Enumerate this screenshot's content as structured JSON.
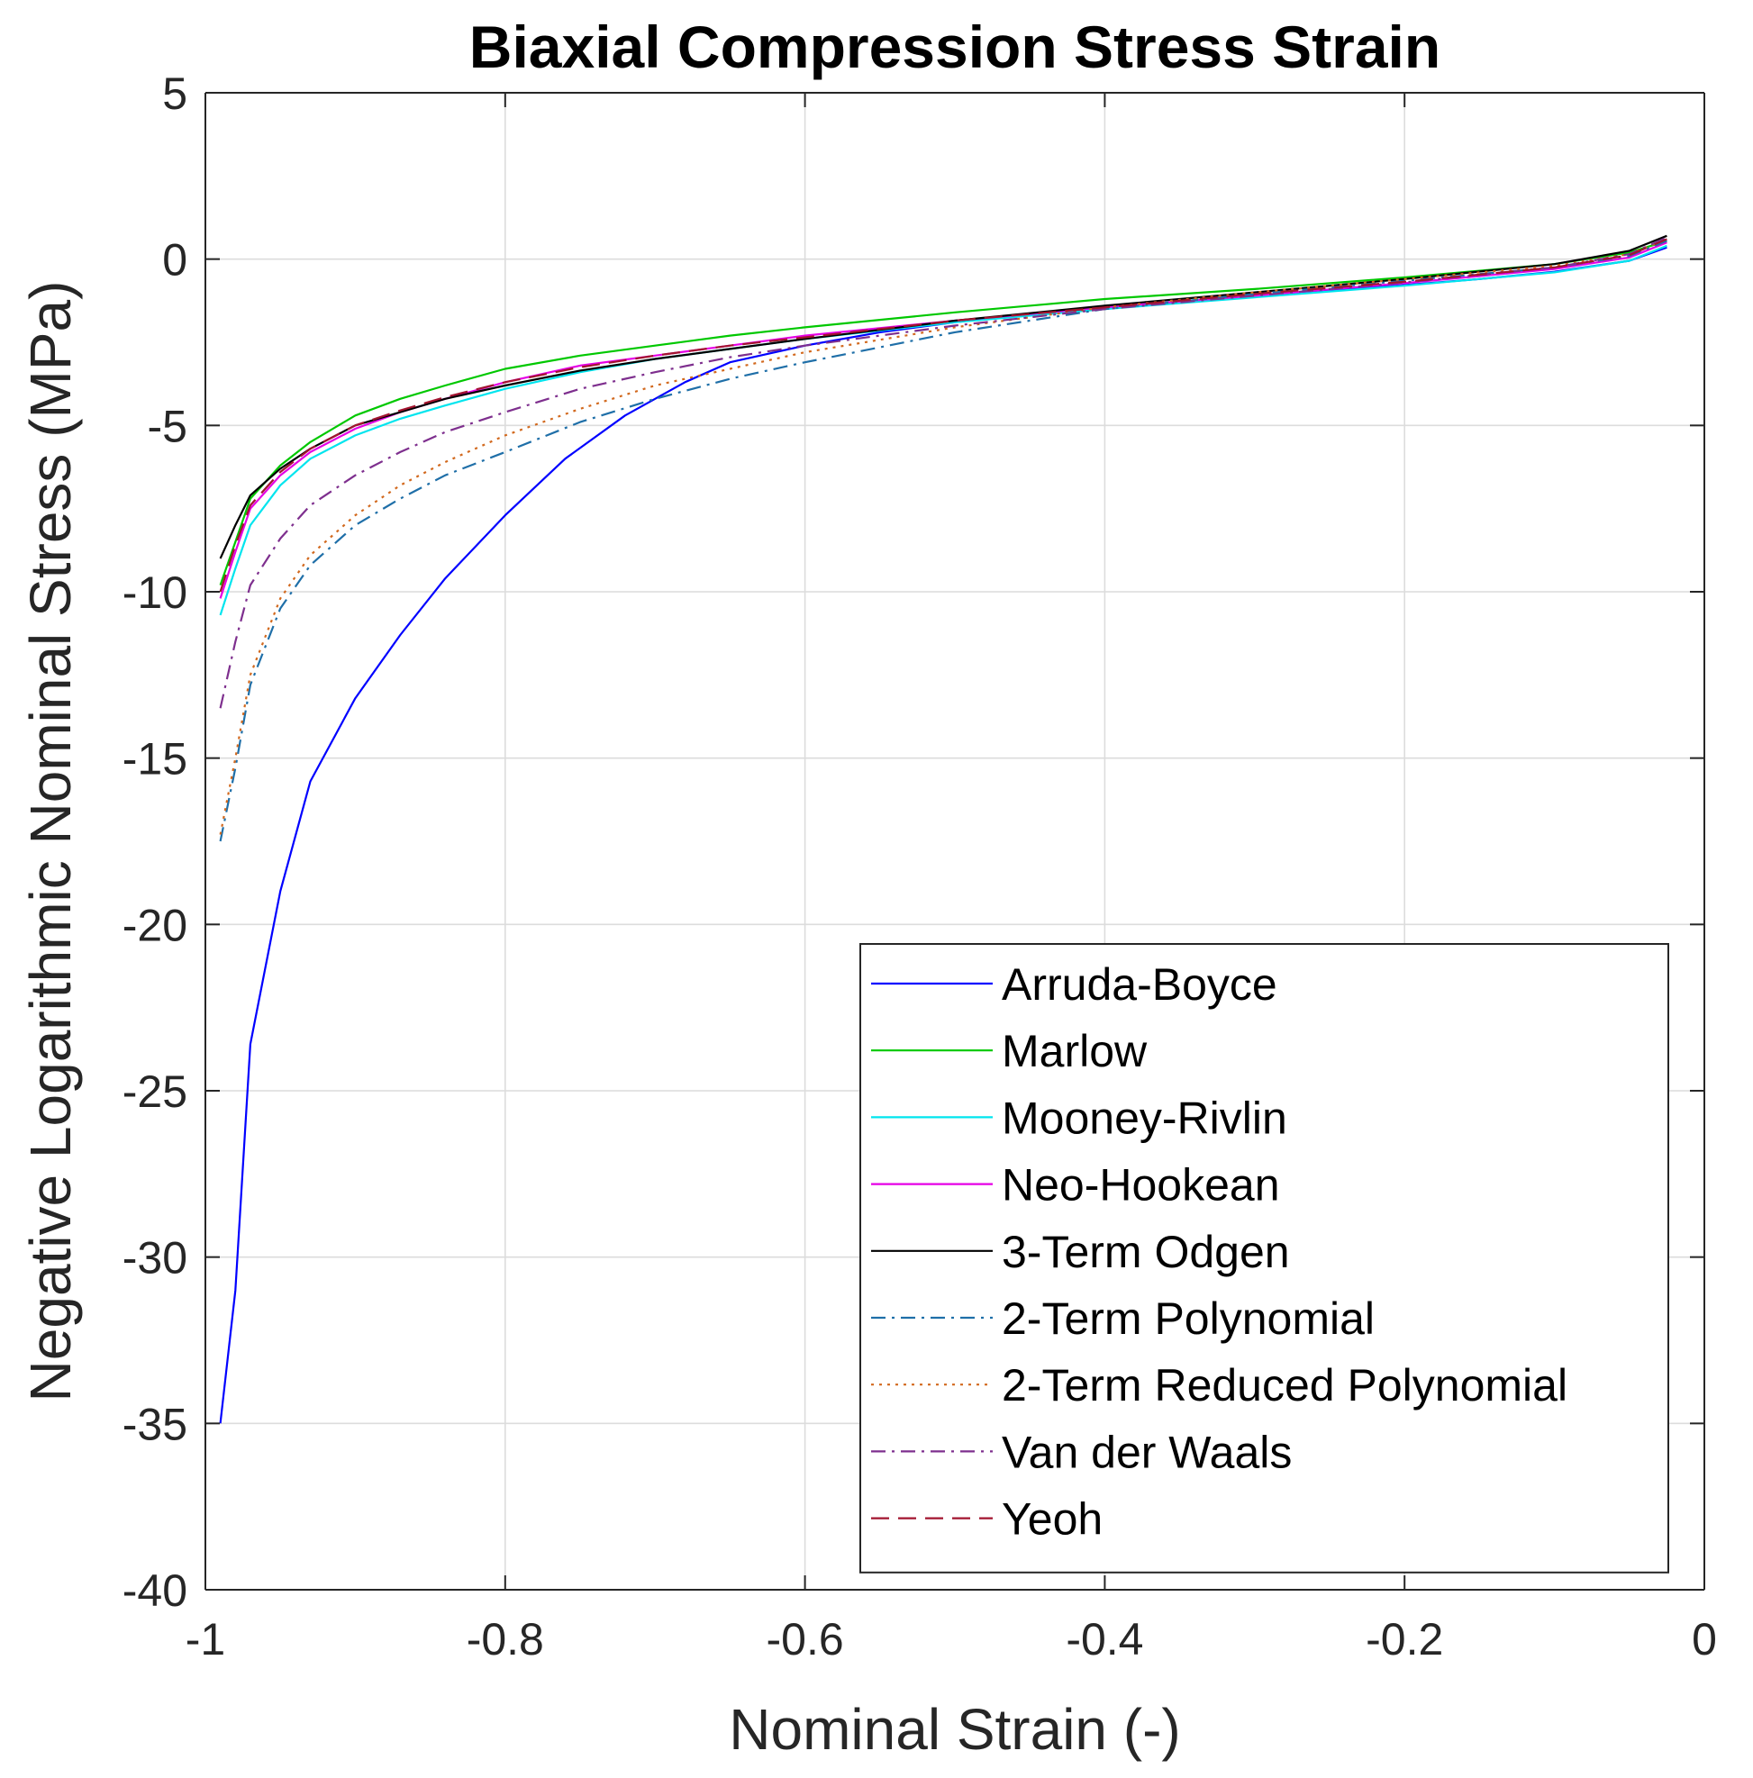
{
  "chart_data": {
    "type": "line",
    "title": "Biaxial Compression Stress Strain",
    "xlabel": "Nominal Strain (-)",
    "ylabel": "Negative Logarithmic Nominal Stress (MPa)",
    "xlim": [
      -1,
      0
    ],
    "ylim": [
      -40,
      5
    ],
    "xticks": [
      -1,
      -0.8,
      -0.6,
      -0.4,
      -0.2,
      0
    ],
    "xtick_labels": [
      "-1",
      "-0.8",
      "-0.6",
      "-0.4",
      "-0.2",
      "0"
    ],
    "yticks": [
      -40,
      -35,
      -30,
      -25,
      -20,
      -15,
      -10,
      -5,
      0,
      5
    ],
    "ytick_labels": [
      "-40",
      "-35",
      "-30",
      "-25",
      "-20",
      "-15",
      "-10",
      "-5",
      "0",
      "5"
    ],
    "grid": true,
    "legend_position": "lower-right",
    "series": [
      {
        "name": "Arruda-Boyce",
        "color": "#0000FF",
        "dash": "solid",
        "x": [
          -0.99,
          -0.98,
          -0.97,
          -0.95,
          -0.93,
          -0.9,
          -0.87,
          -0.84,
          -0.8,
          -0.76,
          -0.72,
          -0.68,
          -0.65,
          -0.6,
          -0.55,
          -0.5,
          -0.45,
          -0.4,
          -0.35,
          -0.3,
          -0.25,
          -0.2,
          -0.15,
          -0.1,
          -0.05,
          -0.025
        ],
        "y": [
          -35,
          -31,
          -23.6,
          -19,
          -15.7,
          -13.2,
          -11.3,
          -9.6,
          -7.7,
          -6.0,
          -4.7,
          -3.7,
          -3.1,
          -2.6,
          -2.2,
          -1.9,
          -1.65,
          -1.45,
          -1.28,
          -1.12,
          -0.95,
          -0.78,
          -0.6,
          -0.38,
          -0.05,
          0.35
        ]
      },
      {
        "name": "Marlow",
        "color": "#00C800",
        "dash": "solid",
        "x": [
          -0.99,
          -0.98,
          -0.97,
          -0.95,
          -0.93,
          -0.9,
          -0.87,
          -0.84,
          -0.8,
          -0.75,
          -0.7,
          -0.65,
          -0.6,
          -0.5,
          -0.4,
          -0.3,
          -0.2,
          -0.1,
          -0.05,
          -0.025
        ],
        "y": [
          -9.8,
          -8.5,
          -7.2,
          -6.2,
          -5.5,
          -4.7,
          -4.2,
          -3.8,
          -3.3,
          -2.9,
          -2.6,
          -2.3,
          -2.05,
          -1.6,
          -1.2,
          -0.9,
          -0.55,
          -0.15,
          0.2,
          0.55
        ]
      },
      {
        "name": "Mooney-Rivlin",
        "color": "#00E5EE",
        "dash": "solid",
        "x": [
          -0.99,
          -0.98,
          -0.97,
          -0.95,
          -0.93,
          -0.9,
          -0.87,
          -0.84,
          -0.8,
          -0.75,
          -0.7,
          -0.65,
          -0.6,
          -0.5,
          -0.4,
          -0.3,
          -0.2,
          -0.1,
          -0.05,
          -0.025
        ],
        "y": [
          -10.7,
          -9.3,
          -8.0,
          -6.8,
          -6.0,
          -5.3,
          -4.8,
          -4.4,
          -3.9,
          -3.4,
          -3.0,
          -2.7,
          -2.4,
          -1.9,
          -1.5,
          -1.15,
          -0.8,
          -0.4,
          -0.05,
          0.4
        ]
      },
      {
        "name": "Neo-Hookean",
        "color": "#E600E6",
        "dash": "solid",
        "x": [
          -0.99,
          -0.98,
          -0.97,
          -0.95,
          -0.93,
          -0.9,
          -0.87,
          -0.84,
          -0.8,
          -0.75,
          -0.7,
          -0.65,
          -0.6,
          -0.5,
          -0.4,
          -0.3,
          -0.2,
          -0.1,
          -0.05,
          -0.025
        ],
        "y": [
          -10.2,
          -8.8,
          -7.5,
          -6.5,
          -5.8,
          -5.1,
          -4.6,
          -4.2,
          -3.7,
          -3.2,
          -2.9,
          -2.6,
          -2.3,
          -1.85,
          -1.45,
          -1.1,
          -0.72,
          -0.3,
          0.05,
          0.5
        ]
      },
      {
        "name": "3-Term Odgen",
        "color": "#000000",
        "dash": "solid",
        "x": [
          -0.99,
          -0.98,
          -0.97,
          -0.95,
          -0.93,
          -0.9,
          -0.87,
          -0.84,
          -0.8,
          -0.75,
          -0.7,
          -0.65,
          -0.6,
          -0.5,
          -0.4,
          -0.3,
          -0.2,
          -0.1,
          -0.05,
          -0.025
        ],
        "y": [
          -9.0,
          -8.0,
          -7.1,
          -6.3,
          -5.7,
          -5.0,
          -4.6,
          -4.2,
          -3.8,
          -3.35,
          -3.0,
          -2.7,
          -2.4,
          -1.85,
          -1.4,
          -1.0,
          -0.6,
          -0.15,
          0.25,
          0.7
        ]
      },
      {
        "name": "2-Term Polynomial",
        "color": "#1F6FA8",
        "dash": "dashdot",
        "x": [
          -0.99,
          -0.98,
          -0.97,
          -0.95,
          -0.93,
          -0.9,
          -0.87,
          -0.84,
          -0.8,
          -0.75,
          -0.7,
          -0.65,
          -0.6,
          -0.5,
          -0.4,
          -0.3,
          -0.2,
          -0.1,
          -0.05,
          -0.025
        ],
        "y": [
          -17.5,
          -15.3,
          -12.8,
          -10.5,
          -9.2,
          -8.0,
          -7.2,
          -6.5,
          -5.8,
          -4.9,
          -4.2,
          -3.6,
          -3.1,
          -2.2,
          -1.5,
          -1.05,
          -0.65,
          -0.25,
          0.1,
          0.55
        ]
      },
      {
        "name": "2-Term Reduced Polynomial",
        "color": "#D2691E",
        "dash": "dotted",
        "x": [
          -0.99,
          -0.98,
          -0.97,
          -0.95,
          -0.93,
          -0.9,
          -0.87,
          -0.84,
          -0.8,
          -0.75,
          -0.7,
          -0.65,
          -0.6,
          -0.5,
          -0.4,
          -0.3,
          -0.2,
          -0.1,
          -0.05,
          -0.025
        ],
        "y": [
          -17.3,
          -15.0,
          -12.5,
          -10.2,
          -8.9,
          -7.7,
          -6.8,
          -6.1,
          -5.3,
          -4.5,
          -3.8,
          -3.3,
          -2.8,
          -2.05,
          -1.45,
          -1.0,
          -0.6,
          -0.2,
          0.15,
          0.6
        ]
      },
      {
        "name": "Van der Waals",
        "color": "#7E2F8E",
        "dash": "dashdot",
        "x": [
          -0.99,
          -0.98,
          -0.97,
          -0.95,
          -0.93,
          -0.9,
          -0.87,
          -0.84,
          -0.8,
          -0.75,
          -0.7,
          -0.65,
          -0.6,
          -0.5,
          -0.4,
          -0.3,
          -0.2,
          -0.1,
          -0.05,
          -0.025
        ],
        "y": [
          -13.5,
          -11.5,
          -9.8,
          -8.4,
          -7.4,
          -6.5,
          -5.8,
          -5.2,
          -4.6,
          -3.9,
          -3.4,
          -2.95,
          -2.6,
          -2.0,
          -1.5,
          -1.1,
          -0.7,
          -0.25,
          0.15,
          0.65
        ]
      },
      {
        "name": "Yeoh",
        "color": "#A2142F",
        "dash": "dashed",
        "x": [
          -0.99,
          -0.98,
          -0.97,
          -0.95,
          -0.93,
          -0.9,
          -0.87,
          -0.84,
          -0.8,
          -0.75,
          -0.7,
          -0.65,
          -0.6,
          -0.5,
          -0.4,
          -0.3,
          -0.2,
          -0.1,
          -0.05,
          -0.025
        ],
        "y": [
          -10.0,
          -8.6,
          -7.4,
          -6.4,
          -5.7,
          -5.0,
          -4.55,
          -4.15,
          -3.7,
          -3.25,
          -2.9,
          -2.6,
          -2.35,
          -1.85,
          -1.45,
          -1.05,
          -0.68,
          -0.25,
          0.12,
          0.6
        ]
      }
    ]
  }
}
